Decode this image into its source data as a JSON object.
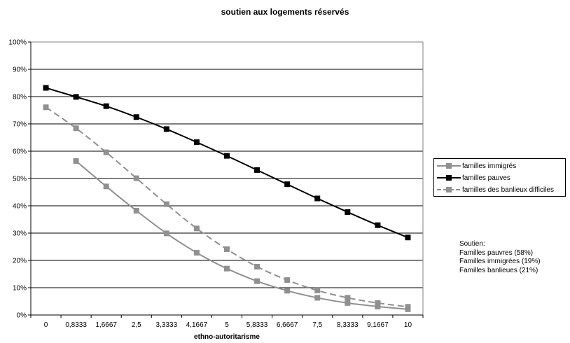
{
  "chart_data": {
    "type": "line",
    "title": "soutien aux logements réservés",
    "xlabel": "ethno-autoritarisme",
    "ylabel": "",
    "categories": [
      "0",
      "0,8333",
      "1,6667",
      "2,5",
      "3,3333",
      "4,1667",
      "5",
      "5,8333",
      "6,6667",
      "7,5",
      "8,3333",
      "9,1667",
      "10"
    ],
    "ylim": [
      0,
      100
    ],
    "yticks": [
      "0%",
      "10%",
      "20%",
      "30%",
      "40%",
      "50%",
      "60%",
      "70%",
      "80%",
      "90%",
      "100%"
    ],
    "grid": true,
    "legend_position": "right",
    "series": [
      {
        "name": "familles immigrés",
        "color": "#909090",
        "dash": false,
        "values": [
          null,
          56.4,
          47.1,
          38.2,
          29.9,
          22.8,
          17.0,
          12.4,
          8.9,
          6.3,
          4.4,
          3.1,
          2.1
        ]
      },
      {
        "name": "familles pauves",
        "color": "#000000",
        "dash": false,
        "values": [
          83.2,
          79.9,
          76.5,
          72.5,
          68.1,
          63.3,
          58.3,
          53.1,
          47.9,
          42.7,
          37.7,
          32.9,
          28.4
        ]
      },
      {
        "name": "familles des banlieux difficiles",
        "color": "#909090",
        "dash": true,
        "values": [
          76.1,
          68.4,
          59.6,
          50.1,
          40.6,
          31.7,
          24.1,
          17.7,
          12.8,
          9.0,
          6.3,
          4.4,
          3.0
        ]
      }
    ],
    "annotation": {
      "heading": "Soutien:",
      "lines": [
        "Familles pauvres (58%)",
        "Familles immigrées (19%)",
        "Familles banlieues (21%)"
      ]
    }
  }
}
